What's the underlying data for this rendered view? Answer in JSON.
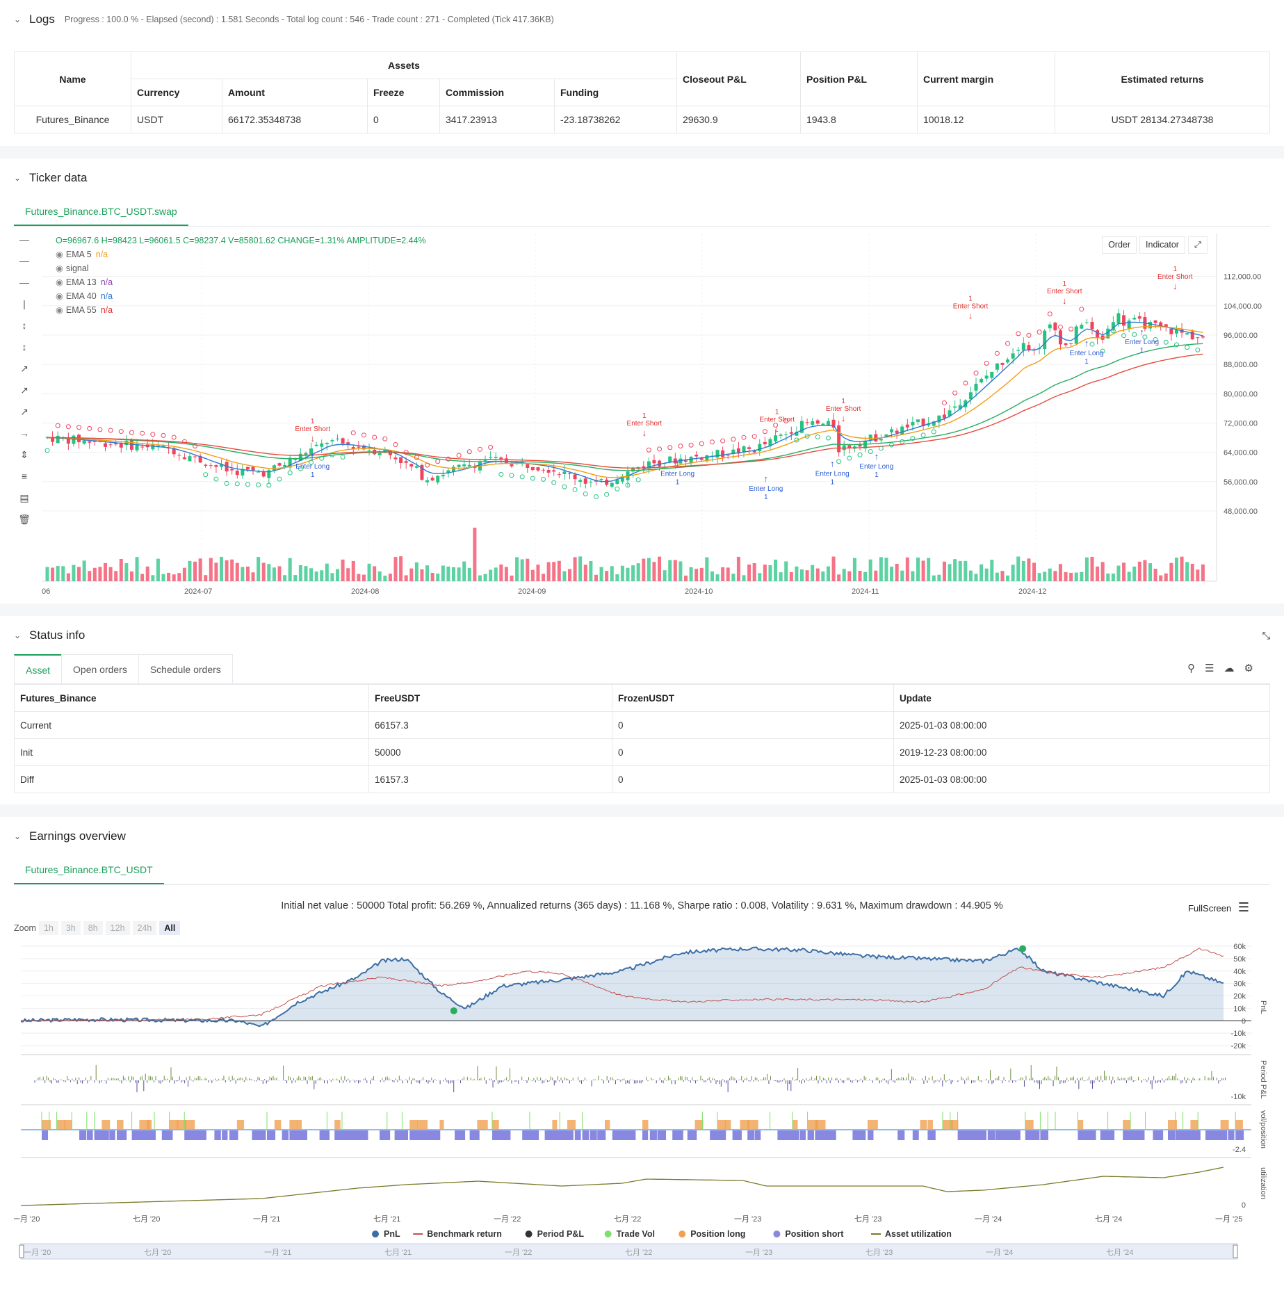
{
  "logs": {
    "title": "Logs",
    "meta": "Progress : 100.0 % - Elapsed (second) : 1.581  Seconds - Total log count : 546 - Trade count : 271 - Completed (Tick 417.36KB)",
    "headers": {
      "name": "Name",
      "assets": "Assets",
      "currency": "Currency",
      "amount": "Amount",
      "freeze": "Freeze",
      "commission": "Commission",
      "funding": "Funding",
      "closeout": "Closeout P&L",
      "position": "Position P&L",
      "margin": "Current margin",
      "returns": "Estimated returns"
    },
    "row": {
      "name": "Futures_Binance",
      "currency": "USDT",
      "amount": "66172.35348738",
      "freeze": "0",
      "commission": "3417.23913",
      "funding": "-23.18738262",
      "closeout": "29630.9",
      "position": "1943.8",
      "margin": "10018.12",
      "returns": "USDT 28134.27348738"
    }
  },
  "ticker": {
    "title": "Ticker data",
    "tab": "Futures_Binance.BTC_USDT.swap",
    "ohlc": "O=96967.6 H=98423 L=96061.5 C=98237.4 V=85801.62 CHANGE=1.31% AMPLITUDE=2.44%",
    "legend": [
      {
        "label": "EMA 5",
        "value": "n/a",
        "color": "#f39c12"
      },
      {
        "label": "signal",
        "value": "",
        "color": "#555555"
      },
      {
        "label": "EMA 13",
        "value": "n/a",
        "color": "#8e44ad"
      },
      {
        "label": "EMA 40",
        "value": "n/a",
        "color": "#2a7ad5"
      },
      {
        "label": "EMA 55",
        "value": "n/a",
        "color": "#e03030"
      }
    ],
    "buttons": {
      "order": "Order",
      "indicator": "Indicator"
    },
    "y_ticks": [
      "112,000.00",
      "104,000.00",
      "96,000.00",
      "88,000.00",
      "80,000.00",
      "72,000.00",
      "64,000.00",
      "56,000.00",
      "48,000.00"
    ],
    "x_ticks": [
      "06",
      "2024-07",
      "2024-08",
      "2024-09",
      "2024-10",
      "2024-11",
      "2024-12"
    ],
    "annotations": {
      "short": "Enter Short",
      "long": "Enter Long",
      "qty": "1"
    }
  },
  "status": {
    "title": "Status info",
    "tabs": [
      "Asset",
      "Open orders",
      "Schedule orders"
    ],
    "headers": [
      "Futures_Binance",
      "FreeUSDT",
      "FrozenUSDT",
      "Update"
    ],
    "rows": [
      {
        "label": "Current",
        "free": "66157.3",
        "frozen": "0",
        "update": "2025-01-03 08:00:00"
      },
      {
        "label": "Init",
        "free": "50000",
        "frozen": "0",
        "update": "2019-12-23 08:00:00"
      },
      {
        "label": "Diff",
        "free": "16157.3",
        "frozen": "0",
        "update": "2025-01-03 08:00:00"
      }
    ]
  },
  "earnings": {
    "title": "Earnings overview",
    "tab": "Futures_Binance.BTC_USDT",
    "stats": "Initial net value : 50000  Total profit: 56.269 %, Annualized returns (365 days) : 11.168 %, Sharpe ratio : 0.008, Volatility : 9.631 %, Maximum drawdown : 44.905 %",
    "fullscreen": "FullScreen",
    "zoom_label": "Zoom",
    "zoom_opts": [
      "1h",
      "3h",
      "8h",
      "12h",
      "24h",
      "All"
    ],
    "pnl_ticks": [
      "60k",
      "50k",
      "40k",
      "30k",
      "20k",
      "10k",
      "0",
      "-10k",
      "-20k"
    ],
    "period_tick": "-10k",
    "pos_tick": "-2.4",
    "util_tick": "0",
    "axis_labels": {
      "pnl": "PnL",
      "period": "Period P&L",
      "vol": "vol/position",
      "util": "utilization"
    },
    "x_ticks": [
      "一月 '20",
      "七月 '20",
      "一月 '21",
      "七月 '21",
      "一月 '22",
      "七月 '22",
      "一月 '23",
      "七月 '23",
      "一月 '24",
      "七月 '24",
      "一月 '25"
    ],
    "nav_ticks": [
      "一月 '20",
      "七月 '20",
      "一月 '21",
      "七月 '21",
      "一月 '22",
      "七月 '22",
      "一月 '23",
      "七月 '23",
      "一月 '24",
      "七月 '24"
    ],
    "legend": [
      {
        "label": "PnL",
        "color": "#3a6ea5"
      },
      {
        "label": "Benchmark return",
        "color": "#c0504d"
      },
      {
        "label": "Period P&L",
        "color": "#333333"
      },
      {
        "label": "Trade Vol",
        "color": "#7ee06a"
      },
      {
        "label": "Position long",
        "color": "#f0a050"
      },
      {
        "label": "Position short",
        "color": "#8888e0"
      },
      {
        "label": "Asset utilization",
        "color": "#7a7a2a"
      }
    ]
  }
}
